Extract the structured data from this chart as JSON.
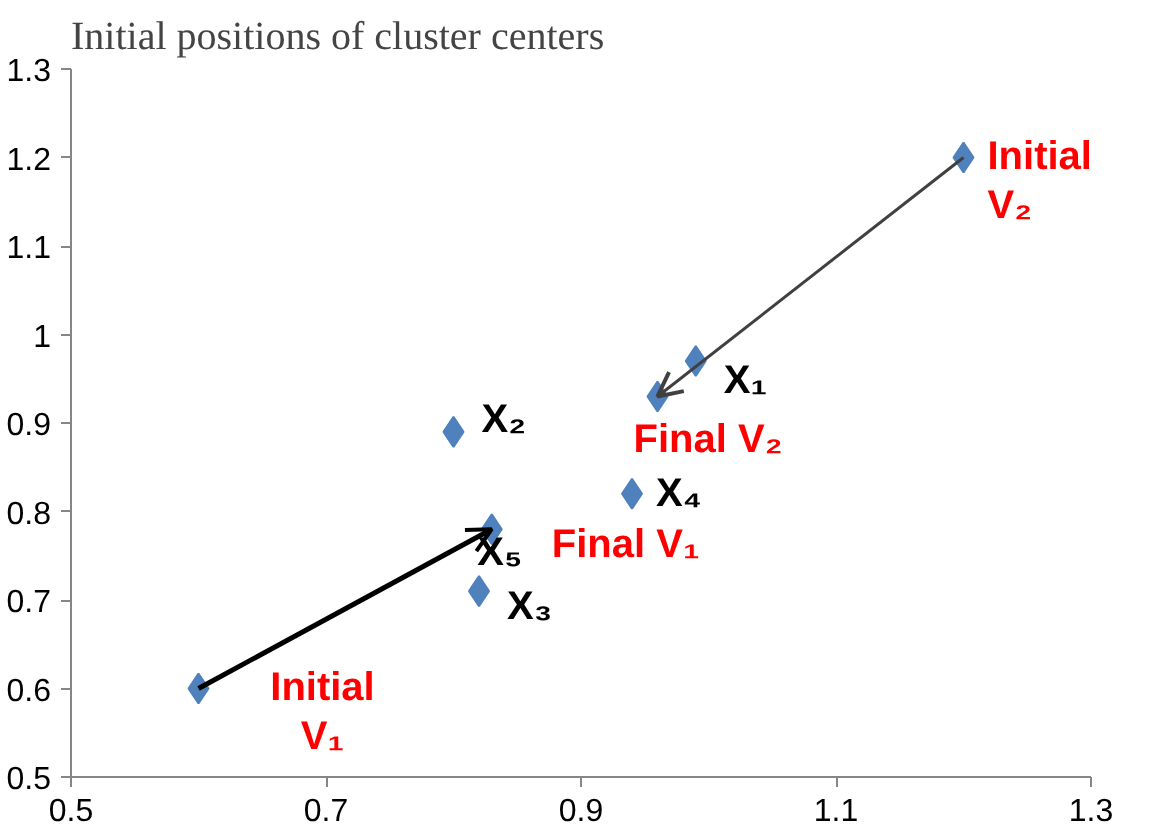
{
  "chart_data": {
    "type": "scatter",
    "title": "Initial positions of cluster centers",
    "grid": false,
    "xlim": [
      0.5,
      1.3
    ],
    "ylim": [
      0.5,
      1.3
    ],
    "xticks": [
      0.5,
      0.7,
      0.9,
      1.1,
      1.3
    ],
    "yticks": [
      0.5,
      0.6,
      0.7,
      0.8,
      0.9,
      1,
      1.1,
      1.2,
      1.3
    ],
    "series": [
      {
        "marker": "diamond",
        "color": "#4f81bd",
        "x": [
          0.6,
          0.8,
          0.82,
          0.83,
          0.94,
          0.96,
          0.99,
          1.2
        ],
        "values": [
          0.6,
          0.89,
          0.71,
          0.78,
          0.82,
          0.93,
          0.97,
          1.2
        ]
      }
    ],
    "annotations": [
      {
        "text": "X₁",
        "x": 0.99,
        "y": 0.97
      },
      {
        "text": "X₂",
        "x": 0.8,
        "y": 0.89
      },
      {
        "text": "X₃",
        "x": 0.82,
        "y": 0.71
      },
      {
        "text": "X₄",
        "x": 0.94,
        "y": 0.82
      },
      {
        "text": "X₅",
        "x": 0.83,
        "y": 0.78
      },
      {
        "text": "Initial\nV₁",
        "x": 0.6,
        "y": 0.6
      },
      {
        "text": "Final V₁",
        "x": 0.83,
        "y": 0.78
      },
      {
        "text": "Final V₂",
        "x": 0.96,
        "y": 0.93
      },
      {
        "text": "Initial\nV₂",
        "x": 1.2,
        "y": 1.2
      }
    ]
  }
}
